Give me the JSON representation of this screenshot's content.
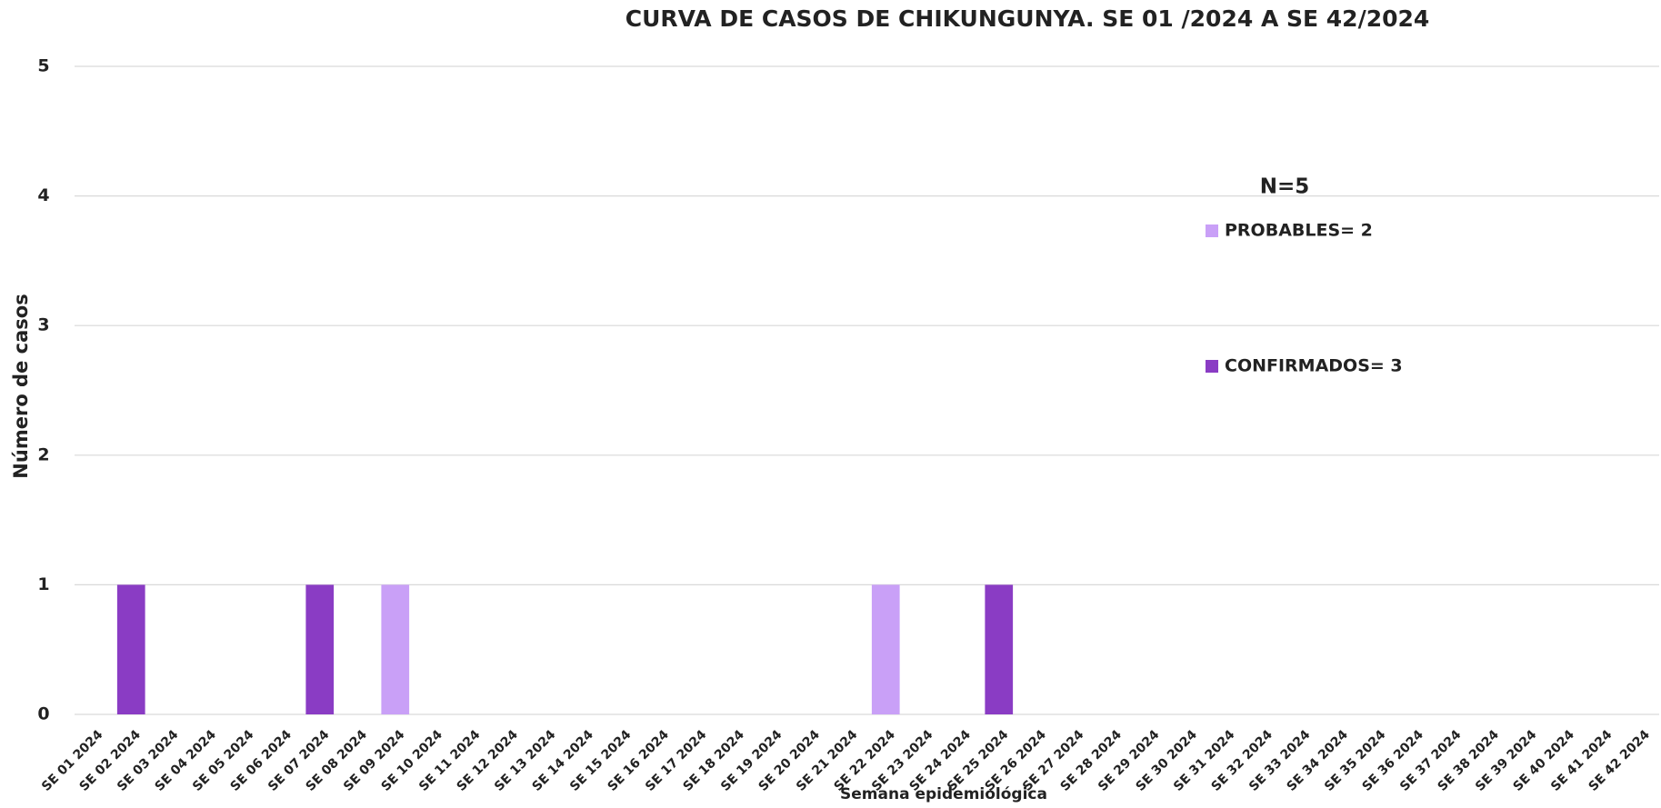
{
  "chart_data": {
    "type": "bar",
    "stacked": true,
    "title": "CURVA DE CASOS DE CHIKUNGUNYA. SE 01 /2024 A SE 42/2024",
    "x_label": "Semana epidemiológica",
    "y_label": "Número de casos",
    "annotation": "N=5",
    "categories": [
      "SE 01 2024",
      "SE 02 2024",
      "SE 03 2024",
      "SE 04 2024",
      "SE 05 2024",
      "SE 06 2024",
      "SE 07 2024",
      "SE 08 2024",
      "SE 09 2024",
      "SE 10 2024",
      "SE 11 2024",
      "SE 12 2024",
      "SE 13 2024",
      "SE 14 2024",
      "SE 15 2024",
      "SE 16 2024",
      "SE 17 2024",
      "SE 18 2024",
      "SE 19 2024",
      "SE 20 2024",
      "SE 21 2024",
      "SE 22 2024",
      "SE 23 2024",
      "SE 24 2024",
      "SE 25 2024",
      "SE 26 2024",
      "SE 27 2024",
      "SE 28 2024",
      "SE 29 2024",
      "SE 30 2024",
      "SE 31 2024",
      "SE 32 2024",
      "SE 33 2024",
      "SE 34 2024",
      "SE 35 2024",
      "SE 36 2024",
      "SE 37 2024",
      "SE 38 2024",
      "SE 39 2024",
      "SE 40 2024",
      "SE 41 2024",
      "SE 42 2024"
    ],
    "series": [
      {
        "name": "CONFIRMADOS= 3",
        "color": "#8a3cc4",
        "values": [
          0,
          1,
          0,
          0,
          0,
          0,
          1,
          0,
          0,
          0,
          0,
          0,
          0,
          0,
          0,
          0,
          0,
          0,
          0,
          0,
          0,
          0,
          0,
          0,
          1,
          0,
          0,
          0,
          0,
          0,
          0,
          0,
          0,
          0,
          0,
          0,
          0,
          0,
          0,
          0,
          0,
          0
        ]
      },
      {
        "name": "PROBABLES= 2",
        "color": "#c9a0f7",
        "values": [
          0,
          0,
          0,
          0,
          0,
          0,
          0,
          0,
          1,
          0,
          0,
          0,
          0,
          0,
          0,
          0,
          0,
          0,
          0,
          0,
          0,
          1,
          0,
          0,
          0,
          0,
          0,
          0,
          0,
          0,
          0,
          0,
          0,
          0,
          0,
          0,
          0,
          0,
          0,
          0,
          0,
          0
        ]
      }
    ],
    "ylim": [
      0,
      5
    ],
    "yticks": [
      0,
      1,
      2,
      3,
      4,
      5
    ],
    "grid": true
  }
}
